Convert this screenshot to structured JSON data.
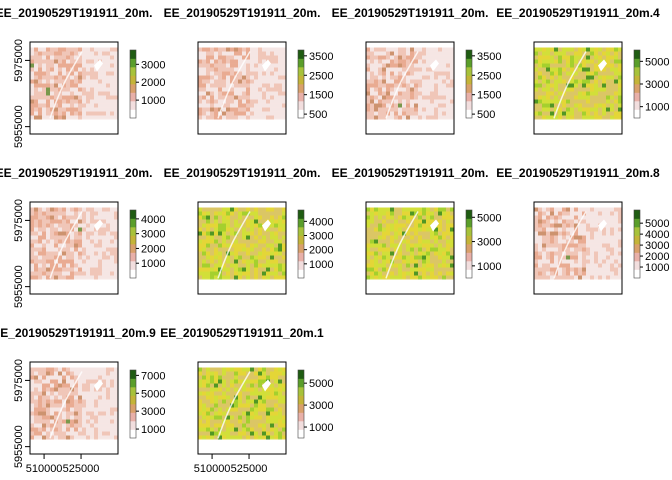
{
  "figure": {
    "layout": "3x4",
    "colors": {
      "pink_ramp": [
        "#f5e6e3",
        "#f0c2b2",
        "#e8a488",
        "#c98a62",
        "#6b8f3a"
      ],
      "yellow_ramp": [
        "#d9c46a",
        "#e3d637",
        "#cfe03a",
        "#9ccf2e",
        "#3f8f22"
      ],
      "legend_ramp": [
        "#ffffff",
        "#f2dede",
        "#e8b0a8",
        "#d9a06b",
        "#c4b438",
        "#a7c23a",
        "#5a9e2a",
        "#1f5c12"
      ]
    }
  },
  "chart_data": [
    {
      "type": "heatmap",
      "title": "EE_20190529T191911_20m.",
      "palette": "pink",
      "legend": {
        "range": [
          0,
          3800
        ],
        "ticks": [
          1000,
          2000,
          3000
        ],
        "tick_labels": [
          "1000",
          "2000",
          "3000"
        ]
      },
      "ylabel_ticks": [
        "5975000",
        "5955000"
      ],
      "xlabel_ticks": []
    },
    {
      "type": "heatmap",
      "title": "EE_20190529T191911_20m.",
      "palette": "pink",
      "legend": {
        "range": [
          300,
          3800
        ],
        "ticks": [
          500,
          1500,
          2500,
          3500
        ],
        "tick_labels": [
          "500",
          "1500",
          "2500",
          "3500"
        ]
      },
      "ylabel_ticks": [],
      "xlabel_ticks": []
    },
    {
      "type": "heatmap",
      "title": "EE_20190529T191911_20m.",
      "palette": "pink",
      "legend": {
        "range": [
          300,
          3800
        ],
        "ticks": [
          500,
          1500,
          2500,
          3500
        ],
        "tick_labels": [
          "500",
          "1500",
          "2500",
          "3500"
        ]
      },
      "ylabel_ticks": [],
      "xlabel_ticks": []
    },
    {
      "type": "heatmap",
      "title": "EE_20190529T191911_20m.4",
      "palette": "yellow",
      "legend": {
        "range": [
          0,
          6000
        ],
        "ticks": [
          1000,
          3000,
          5000
        ],
        "tick_labels": [
          "1000",
          "3000",
          "5000"
        ]
      },
      "ylabel_ticks": [],
      "xlabel_ticks": []
    },
    {
      "type": "heatmap",
      "title": "EE_20190529T191911_20m.",
      "palette": "pink",
      "legend": {
        "range": [
          0,
          4600
        ],
        "ticks": [
          1000,
          2000,
          3000,
          4000
        ],
        "tick_labels": [
          "1000",
          "2000",
          "3000",
          "4000"
        ]
      },
      "ylabel_ticks": [
        "5975000",
        "5955000"
      ],
      "xlabel_ticks": []
    },
    {
      "type": "heatmap",
      "title": "EE_20190529T191911_20m.",
      "palette": "yellow",
      "legend": {
        "range": [
          0,
          4800
        ],
        "ticks": [
          1000,
          2000,
          3000,
          4000
        ],
        "tick_labels": [
          "1000",
          "2000",
          "3000",
          "4000"
        ]
      },
      "ylabel_ticks": [],
      "xlabel_ticks": []
    },
    {
      "type": "heatmap",
      "title": "EE_20190529T191911_20m.",
      "palette": "yellow",
      "legend": {
        "range": [
          0,
          5600
        ],
        "ticks": [
          1000,
          3000,
          5000
        ],
        "tick_labels": [
          "1000",
          "3000",
          "5000"
        ]
      },
      "ylabel_ticks": [],
      "xlabel_ticks": []
    },
    {
      "type": "heatmap",
      "title": "EE_20190529T191911_20m.8",
      "palette": "pink",
      "legend": {
        "range": [
          0,
          6200
        ],
        "ticks": [
          1000,
          2000,
          3000,
          4000,
          5000
        ],
        "tick_labels": [
          "1000",
          "2000",
          "3000",
          "4000",
          "5000"
        ]
      },
      "ylabel_ticks": [],
      "xlabel_ticks": []
    },
    {
      "type": "heatmap",
      "title": "EE_20190529T191911_20m.9",
      "palette": "pink",
      "legend": {
        "range": [
          0,
          7600
        ],
        "ticks": [
          1000,
          3000,
          5000,
          7000
        ],
        "tick_labels": [
          "1000",
          "3000",
          "5000",
          "7000"
        ]
      },
      "ylabel_ticks": [
        "5975000",
        "5955000"
      ],
      "xlabel_ticks": [
        "510000",
        "525000"
      ]
    },
    {
      "type": "heatmap",
      "title": "EE_20190529T191911_20m.1",
      "palette": "yellow",
      "legend": {
        "range": [
          0,
          6200
        ],
        "ticks": [
          1000,
          3000,
          5000
        ],
        "tick_labels": [
          "1000",
          "3000",
          "5000"
        ]
      },
      "ylabel_ticks": [],
      "xlabel_ticks": [
        "510000",
        "525000"
      ]
    }
  ]
}
